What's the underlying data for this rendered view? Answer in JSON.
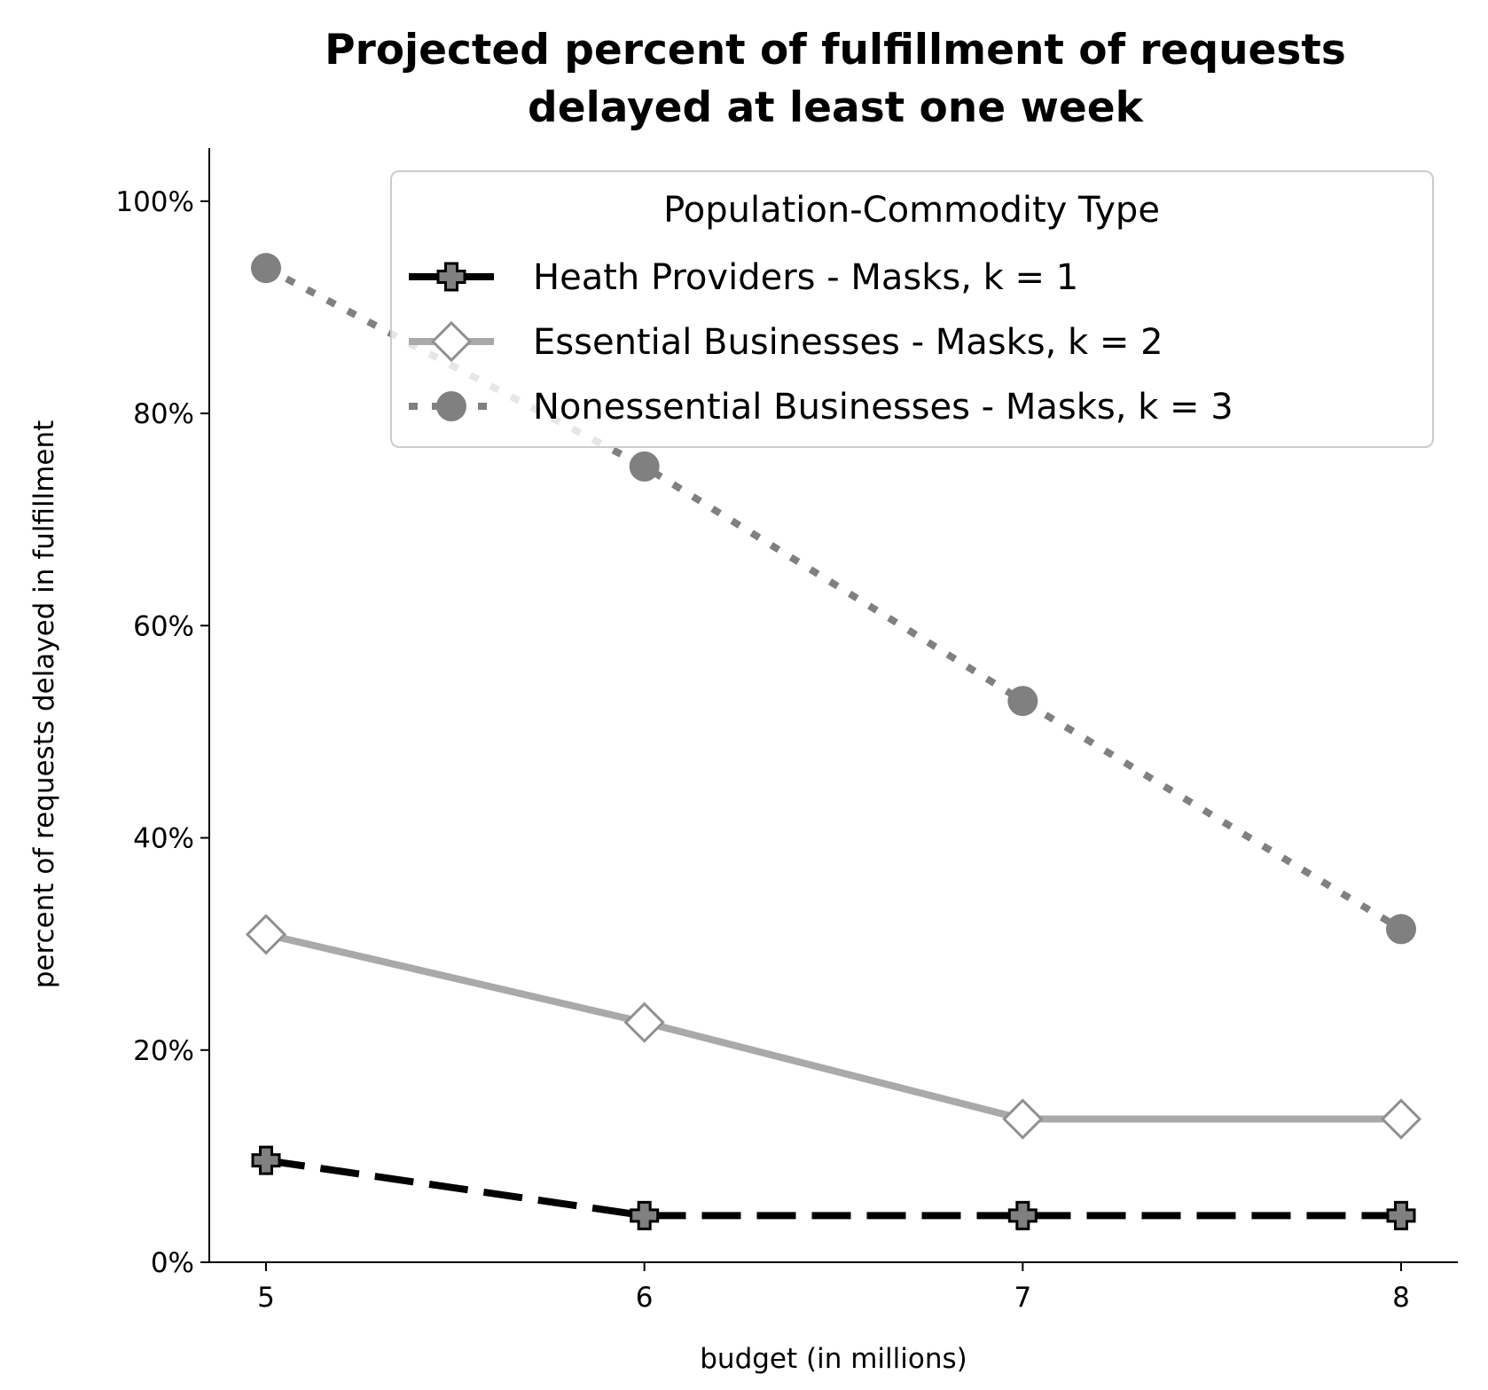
{
  "chart_data": {
    "type": "line",
    "title": "Projected percent of fulfillment of requests delayed at least one week",
    "title_lines": [
      "Projected percent of fulfillment of requests",
      "delayed at least one week"
    ],
    "xlabel": "budget (in millions)",
    "ylabel": "percent of requests delayed in fulfillment",
    "x": [
      5,
      6,
      7,
      8
    ],
    "x_tick_labels": [
      "5",
      "6",
      "7",
      "8"
    ],
    "xlim": [
      4.85,
      8.15
    ],
    "ylim": [
      0,
      105
    ],
    "y_ticks": [
      0,
      20,
      40,
      60,
      80,
      100
    ],
    "y_tick_labels": [
      "0%",
      "20%",
      "40%",
      "60%",
      "80%",
      "100%"
    ],
    "grid": false,
    "legend": {
      "title": "Population-Commodity Type",
      "position": "top-right"
    },
    "series": [
      {
        "name": "Heath Providers - Masks, k = 1",
        "values": [
          9.6,
          4.4,
          4.4,
          4.4
        ],
        "color": "#000000",
        "marker_fill": "#808080",
        "line_style": "dashed",
        "marker": "plus"
      },
      {
        "name": "Essential Businesses - Masks, k = 2",
        "values": [
          30.9,
          22.6,
          13.5,
          13.5
        ],
        "color": "#a9a9a9",
        "marker_fill": "#ffffff",
        "line_style": "solid",
        "marker": "diamond"
      },
      {
        "name": "Nonessential Businesses - Masks, k = 3",
        "values": [
          93.7,
          75.0,
          52.9,
          31.4
        ],
        "color": "#808080",
        "marker_fill": "#808080",
        "line_style": "dotted",
        "marker": "circle"
      }
    ]
  }
}
